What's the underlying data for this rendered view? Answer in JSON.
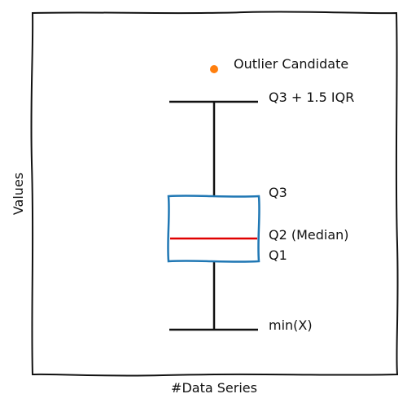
{
  "chart_data": {
    "type": "box",
    "xlabel": "#Data Series",
    "ylabel": "Values",
    "grid": false,
    "box": {
      "color": "#1f77b4",
      "median_color": "#e00000",
      "whisker_color": "#111111"
    },
    "outlier": {
      "label": "Outlier Candidate",
      "color": "#ff7f0e"
    },
    "annotations": {
      "upper_whisker": "Q3 + 1.5 IQR",
      "q3": "Q3",
      "median": "Q2 (Median)",
      "q1": "Q1",
      "lower_whisker": "min(X)"
    }
  }
}
